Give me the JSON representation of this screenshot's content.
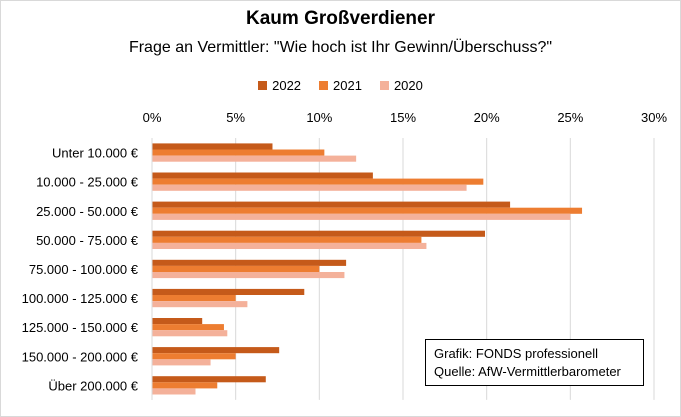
{
  "chart_data": {
    "type": "bar",
    "orientation": "horizontal",
    "title": "Kaum Großverdiener",
    "subtitle": "Frage an Vermittler: \"Wie hoch ist Ihr Gewinn/Überschuss?\"",
    "categories": [
      "Unter 10.000 €",
      "10.000 - 25.000 €",
      "25.000 - 50.000 €",
      "50.000 - 75.000 €",
      "75.000 - 100.000 €",
      "100.000 - 125.000 €",
      "125.000 - 150.000 €",
      "150.000 - 200.000 €",
      "Über 200.000 €"
    ],
    "series": [
      {
        "name": "2022",
        "color": "#c55a1a",
        "values": [
          7.2,
          13.2,
          21.4,
          19.9,
          11.6,
          9.1,
          3.0,
          7.6,
          6.8
        ]
      },
      {
        "name": "2021",
        "color": "#ed7d31",
        "values": [
          10.3,
          19.8,
          25.7,
          16.1,
          10.0,
          5.0,
          4.3,
          5.0,
          3.9
        ]
      },
      {
        "name": "2020",
        "color": "#f4b19a",
        "values": [
          12.2,
          18.8,
          25.0,
          16.4,
          11.5,
          5.7,
          4.5,
          3.5,
          2.6
        ]
      }
    ],
    "xlim": [
      0,
      30
    ],
    "xticks": [
      "0%",
      "5%",
      "10%",
      "15%",
      "20%",
      "25%",
      "30%"
    ],
    "axis_position": "top",
    "grid": true,
    "legend_position": "top"
  },
  "source_box": {
    "line1": "Grafik: FONDS professionell",
    "line2": "Quelle: AfW-Vermittlerbarometer"
  }
}
